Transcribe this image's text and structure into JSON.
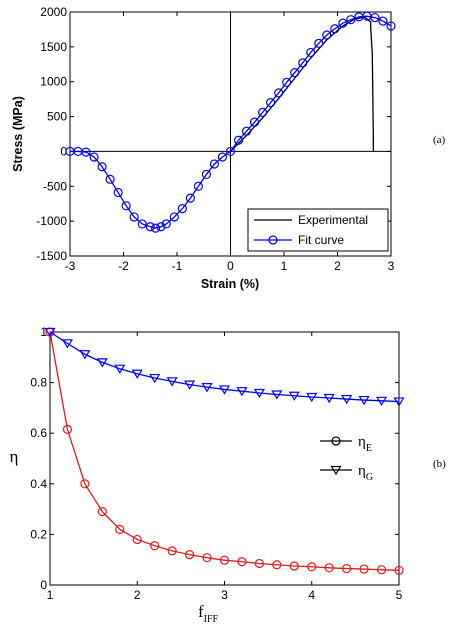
{
  "chart_data": [
    {
      "type": "line",
      "xlabel": "Strain (%)",
      "ylabel": "Stress (MPa)",
      "xlim": [
        -3,
        3
      ],
      "ylim": [
        -1500,
        2000
      ],
      "xticks": [
        "-3",
        "-2",
        "-1",
        "0",
        "1",
        "2",
        "3"
      ],
      "yticks": [
        "-1500",
        "-1000",
        "-500",
        "0",
        "500",
        "1000",
        "1500",
        "2000"
      ],
      "panel_label": "(a)",
      "legend_position": "bottom-right",
      "series": [
        {
          "name": "Experimental",
          "color": "#000000",
          "marker": "none",
          "x": [
            0.0,
            0.3,
            0.6,
            0.9,
            1.2,
            1.5,
            1.8,
            2.1,
            2.3,
            2.5,
            2.6,
            2.62,
            2.62,
            2.65,
            2.66,
            2.67,
            2.67
          ],
          "y": [
            0,
            230,
            480,
            760,
            1050,
            1340,
            1600,
            1800,
            1890,
            1930,
            1870,
            1860,
            1780,
            1400,
            800,
            200,
            0
          ]
        },
        {
          "name": "Fit curve",
          "color": "#0000ff",
          "marker": "circle",
          "x": [
            -3.0,
            -2.85,
            -2.7,
            -2.55,
            -2.4,
            -2.25,
            -2.1,
            -1.95,
            -1.8,
            -1.65,
            -1.5,
            -1.4,
            -1.3,
            -1.2,
            -1.05,
            -0.9,
            -0.75,
            -0.6,
            -0.45,
            -0.3,
            -0.15,
            0.0,
            0.15,
            0.3,
            0.45,
            0.6,
            0.75,
            0.9,
            1.05,
            1.2,
            1.35,
            1.5,
            1.65,
            1.8,
            1.95,
            2.1,
            2.25,
            2.4,
            2.55,
            2.7,
            2.85,
            3.0
          ],
          "y": [
            0,
            0,
            -10,
            -80,
            -220,
            -400,
            -590,
            -780,
            -940,
            -1040,
            -1080,
            -1100,
            -1080,
            -1040,
            -940,
            -820,
            -670,
            -500,
            -330,
            -180,
            -80,
            0,
            160,
            290,
            420,
            560,
            700,
            840,
            990,
            1130,
            1270,
            1420,
            1550,
            1670,
            1760,
            1840,
            1890,
            1930,
            1940,
            1920,
            1870,
            1800
          ]
        }
      ]
    },
    {
      "type": "line",
      "xlabel": "f",
      "xlabel_sub": "IFF",
      "ylabel": "η",
      "xlim": [
        1,
        5
      ],
      "ylim": [
        0,
        1
      ],
      "xticks": [
        "1",
        "2",
        "3",
        "4",
        "5"
      ],
      "yticks": [
        "0",
        "0.2",
        "0.4",
        "0.6",
        "0.8",
        "1"
      ],
      "panel_label": "(b)",
      "legend_position": "center-right",
      "series": [
        {
          "name": "η",
          "name_sub": "E",
          "color": "#e31a1c",
          "marker": "circle",
          "x": [
            1.0,
            1.2,
            1.4,
            1.6,
            1.8,
            2.0,
            2.2,
            2.4,
            2.6,
            2.8,
            3.0,
            3.2,
            3.4,
            3.6,
            3.8,
            4.0,
            4.2,
            4.4,
            4.6,
            4.8,
            5.0
          ],
          "y": [
            1.0,
            0.615,
            0.4,
            0.29,
            0.22,
            0.18,
            0.155,
            0.135,
            0.12,
            0.108,
            0.098,
            0.092,
            0.085,
            0.08,
            0.075,
            0.072,
            0.068,
            0.065,
            0.063,
            0.06,
            0.058
          ]
        },
        {
          "name": "η",
          "name_sub": "G",
          "color": "#0000ff",
          "marker": "triangle-down",
          "x": [
            1.0,
            1.2,
            1.4,
            1.6,
            1.8,
            2.0,
            2.2,
            2.4,
            2.6,
            2.8,
            3.0,
            3.2,
            3.4,
            3.6,
            3.8,
            4.0,
            4.2,
            4.4,
            4.6,
            4.8,
            5.0
          ],
          "y": [
            1.0,
            0.955,
            0.912,
            0.88,
            0.855,
            0.835,
            0.818,
            0.805,
            0.792,
            0.782,
            0.773,
            0.766,
            0.759,
            0.753,
            0.748,
            0.743,
            0.739,
            0.735,
            0.731,
            0.728,
            0.725
          ]
        }
      ]
    }
  ]
}
